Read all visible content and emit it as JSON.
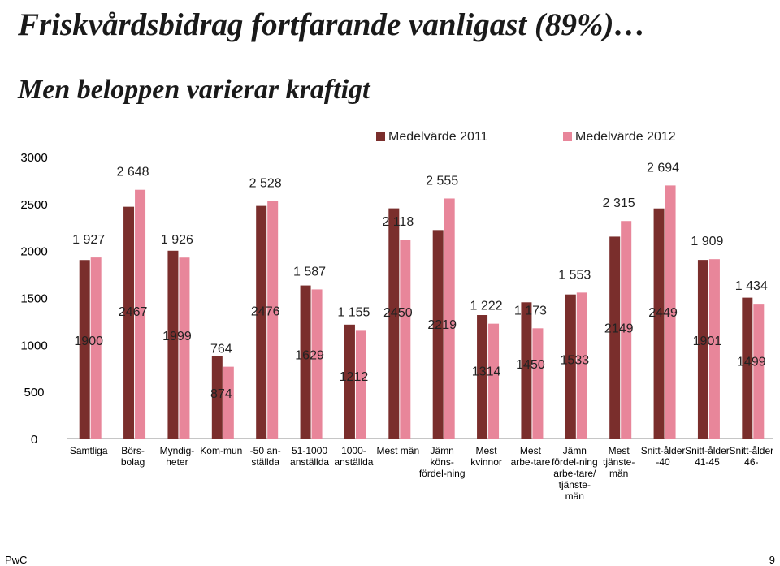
{
  "header": {
    "title": "Friskvårdsbidrag fortfarande vanligast (89%)…",
    "subtitle": "Men beloppen varierar kraftigt"
  },
  "footer": {
    "brand": "PwC",
    "page_number": "9"
  },
  "colors": {
    "series_2011": "#7a2e2c",
    "series_2012": "#e8869a",
    "axis": "#8c8c8c",
    "text": "#000000"
  },
  "chart_data": {
    "type": "bar",
    "title": "",
    "xlabel": "",
    "ylabel": "",
    "ylim": [
      0,
      3000
    ],
    "yticks": [
      "0",
      "500",
      "1000",
      "1500",
      "2000",
      "2500",
      "3000"
    ],
    "grid": false,
    "legend": "top",
    "categories": [
      [
        "Samtliga"
      ],
      [
        "Börs-",
        "bolag"
      ],
      [
        "Myndig-",
        "heter"
      ],
      [
        "Kom-mun"
      ],
      [
        "-50 an-",
        "ställda"
      ],
      [
        "51-1000",
        "anställda"
      ],
      [
        "1000-",
        "anställda"
      ],
      [
        "Mest män"
      ],
      [
        "Jämn",
        "köns-",
        "fördel-ning"
      ],
      [
        "Mest",
        "kvinnor"
      ],
      [
        "Mest",
        "arbe-tare"
      ],
      [
        "Jämn",
        "fördel-ning",
        "arbe-tare/",
        "tjänste-",
        "män"
      ],
      [
        "Mest",
        "tjänste-",
        "män"
      ],
      [
        "Snitt-ålder",
        "-40"
      ],
      [
        "Snitt-ålder",
        "41-45"
      ],
      [
        "Snitt-ålder",
        "46-"
      ]
    ],
    "series": [
      {
        "name": "Medelvärde 2011",
        "values": [
          1900,
          2467,
          1999,
          874,
          2476,
          1629,
          1212,
          2450,
          2219,
          1314,
          1450,
          1533,
          2149,
          2449,
          1901,
          1499
        ],
        "labels": [
          "1900",
          "2467",
          "1999",
          "874",
          "2476",
          "1629",
          "1212",
          "2450",
          "2219",
          "1314",
          "1450",
          "1533",
          "2149",
          "2449",
          "1901",
          "1499"
        ]
      },
      {
        "name": "Medelvärde 2012",
        "values": [
          1927,
          2648,
          1926,
          764,
          2528,
          1587,
          1155,
          2118,
          2555,
          1222,
          1173,
          1553,
          2315,
          2694,
          1909,
          1434
        ],
        "labels": [
          "1 927",
          "2 648",
          "1 926",
          "764",
          "2 528",
          "1 587",
          "1 155",
          "2 118",
          "2 555",
          "1 222",
          "1 173",
          "1 553",
          "2 315",
          "2 694",
          "1 909",
          "1 434"
        ]
      }
    ]
  }
}
